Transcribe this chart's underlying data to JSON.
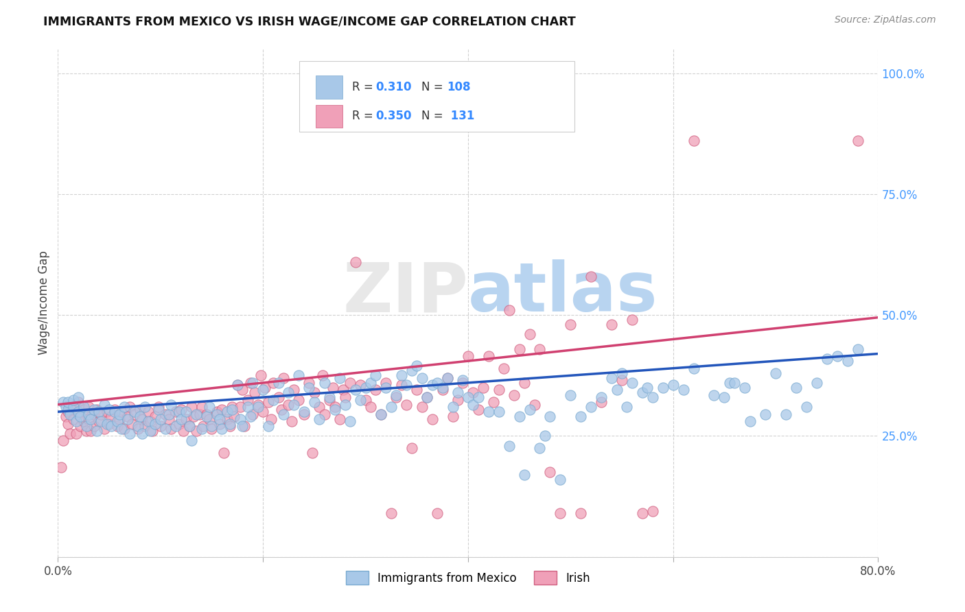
{
  "title": "IMMIGRANTS FROM MEXICO VS IRISH WAGE/INCOME GAP CORRELATION CHART",
  "source": "Source: ZipAtlas.com",
  "ylabel": "Wage/Income Gap",
  "xmin": 0.0,
  "xmax": 0.8,
  "ymin": 0.0,
  "ymax": 1.05,
  "watermark": "ZIPatlas",
  "series": [
    {
      "name": "Immigrants from Mexico",
      "color": "#a8c8e8",
      "edge_color": "#7aaad0",
      "trend_color": "#2255bb",
      "trend_start_x": 0.0,
      "trend_start_y": 0.3,
      "trend_end_x": 0.8,
      "trend_end_y": 0.42
    },
    {
      "name": "Irish",
      "color": "#f0a0b8",
      "edge_color": "#d06080",
      "trend_color": "#d04070",
      "trend_start_x": 0.0,
      "trend_start_y": 0.315,
      "trend_end_x": 0.8,
      "trend_end_y": 0.495
    }
  ],
  "legend_r1": "0.310",
  "legend_n1": "108",
  "legend_r2": "0.350",
  "legend_n2": "131",
  "mexico_points": [
    [
      0.005,
      0.32
    ],
    [
      0.008,
      0.31
    ],
    [
      0.01,
      0.305
    ],
    [
      0.01,
      0.32
    ],
    [
      0.012,
      0.295
    ],
    [
      0.015,
      0.31
    ],
    [
      0.015,
      0.325
    ],
    [
      0.018,
      0.28
    ],
    [
      0.02,
      0.3
    ],
    [
      0.02,
      0.33
    ],
    [
      0.022,
      0.29
    ],
    [
      0.025,
      0.31
    ],
    [
      0.028,
      0.27
    ],
    [
      0.03,
      0.295
    ],
    [
      0.032,
      0.285
    ],
    [
      0.035,
      0.305
    ],
    [
      0.038,
      0.26
    ],
    [
      0.04,
      0.3
    ],
    [
      0.042,
      0.28
    ],
    [
      0.045,
      0.315
    ],
    [
      0.048,
      0.275
    ],
    [
      0.05,
      0.305
    ],
    [
      0.052,
      0.27
    ],
    [
      0.055,
      0.3
    ],
    [
      0.058,
      0.28
    ],
    [
      0.06,
      0.295
    ],
    [
      0.062,
      0.265
    ],
    [
      0.065,
      0.31
    ],
    [
      0.068,
      0.285
    ],
    [
      0.07,
      0.255
    ],
    [
      0.075,
      0.3
    ],
    [
      0.078,
      0.27
    ],
    [
      0.08,
      0.29
    ],
    [
      0.082,
      0.255
    ],
    [
      0.085,
      0.31
    ],
    [
      0.088,
      0.28
    ],
    [
      0.09,
      0.26
    ],
    [
      0.095,
      0.275
    ],
    [
      0.098,
      0.305
    ],
    [
      0.1,
      0.285
    ],
    [
      0.105,
      0.265
    ],
    [
      0.108,
      0.295
    ],
    [
      0.11,
      0.315
    ],
    [
      0.115,
      0.27
    ],
    [
      0.118,
      0.3
    ],
    [
      0.12,
      0.285
    ],
    [
      0.125,
      0.3
    ],
    [
      0.128,
      0.27
    ],
    [
      0.13,
      0.24
    ],
    [
      0.135,
      0.295
    ],
    [
      0.14,
      0.265
    ],
    [
      0.145,
      0.29
    ],
    [
      0.148,
      0.31
    ],
    [
      0.15,
      0.27
    ],
    [
      0.155,
      0.295
    ],
    [
      0.158,
      0.285
    ],
    [
      0.16,
      0.265
    ],
    [
      0.165,
      0.3
    ],
    [
      0.168,
      0.275
    ],
    [
      0.17,
      0.305
    ],
    [
      0.175,
      0.355
    ],
    [
      0.178,
      0.285
    ],
    [
      0.18,
      0.27
    ],
    [
      0.185,
      0.31
    ],
    [
      0.188,
      0.29
    ],
    [
      0.19,
      0.36
    ],
    [
      0.195,
      0.31
    ],
    [
      0.2,
      0.345
    ],
    [
      0.205,
      0.27
    ],
    [
      0.21,
      0.325
    ],
    [
      0.215,
      0.36
    ],
    [
      0.22,
      0.295
    ],
    [
      0.225,
      0.34
    ],
    [
      0.23,
      0.315
    ],
    [
      0.235,
      0.375
    ],
    [
      0.24,
      0.3
    ],
    [
      0.245,
      0.35
    ],
    [
      0.25,
      0.32
    ],
    [
      0.255,
      0.285
    ],
    [
      0.26,
      0.36
    ],
    [
      0.265,
      0.33
    ],
    [
      0.27,
      0.305
    ],
    [
      0.275,
      0.37
    ],
    [
      0.28,
      0.315
    ],
    [
      0.285,
      0.28
    ],
    [
      0.29,
      0.345
    ],
    [
      0.295,
      0.325
    ],
    [
      0.3,
      0.35
    ],
    [
      0.305,
      0.36
    ],
    [
      0.31,
      0.375
    ],
    [
      0.315,
      0.295
    ],
    [
      0.32,
      0.35
    ],
    [
      0.325,
      0.31
    ],
    [
      0.33,
      0.335
    ],
    [
      0.335,
      0.375
    ],
    [
      0.34,
      0.355
    ],
    [
      0.345,
      0.385
    ],
    [
      0.35,
      0.395
    ],
    [
      0.355,
      0.37
    ],
    [
      0.36,
      0.33
    ],
    [
      0.365,
      0.355
    ],
    [
      0.37,
      0.36
    ],
    [
      0.375,
      0.35
    ],
    [
      0.38,
      0.37
    ],
    [
      0.385,
      0.31
    ],
    [
      0.39,
      0.34
    ],
    [
      0.395,
      0.365
    ],
    [
      0.4,
      0.33
    ],
    [
      0.405,
      0.315
    ],
    [
      0.41,
      0.33
    ],
    [
      0.42,
      0.3
    ],
    [
      0.43,
      0.3
    ],
    [
      0.44,
      0.23
    ],
    [
      0.45,
      0.29
    ],
    [
      0.455,
      0.17
    ],
    [
      0.46,
      0.305
    ],
    [
      0.47,
      0.225
    ],
    [
      0.475,
      0.25
    ],
    [
      0.48,
      0.29
    ],
    [
      0.49,
      0.16
    ],
    [
      0.5,
      0.335
    ],
    [
      0.51,
      0.29
    ],
    [
      0.52,
      0.31
    ],
    [
      0.53,
      0.33
    ],
    [
      0.54,
      0.37
    ],
    [
      0.545,
      0.345
    ],
    [
      0.55,
      0.38
    ],
    [
      0.555,
      0.31
    ],
    [
      0.56,
      0.36
    ],
    [
      0.57,
      0.34
    ],
    [
      0.575,
      0.35
    ],
    [
      0.58,
      0.33
    ],
    [
      0.59,
      0.35
    ],
    [
      0.6,
      0.355
    ],
    [
      0.61,
      0.345
    ],
    [
      0.62,
      0.39
    ],
    [
      0.64,
      0.335
    ],
    [
      0.65,
      0.33
    ],
    [
      0.655,
      0.36
    ],
    [
      0.66,
      0.36
    ],
    [
      0.67,
      0.35
    ],
    [
      0.675,
      0.28
    ],
    [
      0.69,
      0.295
    ],
    [
      0.7,
      0.38
    ],
    [
      0.71,
      0.295
    ],
    [
      0.72,
      0.35
    ],
    [
      0.73,
      0.31
    ],
    [
      0.74,
      0.36
    ],
    [
      0.75,
      0.41
    ],
    [
      0.76,
      0.415
    ],
    [
      0.77,
      0.405
    ],
    [
      0.78,
      0.43
    ]
  ],
  "irish_points": [
    [
      0.003,
      0.185
    ],
    [
      0.005,
      0.24
    ],
    [
      0.008,
      0.29
    ],
    [
      0.01,
      0.275
    ],
    [
      0.01,
      0.3
    ],
    [
      0.012,
      0.255
    ],
    [
      0.015,
      0.31
    ],
    [
      0.015,
      0.285
    ],
    [
      0.018,
      0.255
    ],
    [
      0.02,
      0.295
    ],
    [
      0.02,
      0.32
    ],
    [
      0.022,
      0.27
    ],
    [
      0.025,
      0.305
    ],
    [
      0.025,
      0.28
    ],
    [
      0.028,
      0.26
    ],
    [
      0.03,
      0.31
    ],
    [
      0.03,
      0.285
    ],
    [
      0.032,
      0.26
    ],
    [
      0.035,
      0.295
    ],
    [
      0.035,
      0.27
    ],
    [
      0.038,
      0.305
    ],
    [
      0.04,
      0.28
    ],
    [
      0.042,
      0.295
    ],
    [
      0.045,
      0.265
    ],
    [
      0.048,
      0.3
    ],
    [
      0.05,
      0.275
    ],
    [
      0.052,
      0.29
    ],
    [
      0.055,
      0.305
    ],
    [
      0.058,
      0.27
    ],
    [
      0.06,
      0.285
    ],
    [
      0.062,
      0.3
    ],
    [
      0.065,
      0.265
    ],
    [
      0.068,
      0.29
    ],
    [
      0.07,
      0.31
    ],
    [
      0.072,
      0.275
    ],
    [
      0.075,
      0.295
    ],
    [
      0.078,
      0.265
    ],
    [
      0.08,
      0.305
    ],
    [
      0.082,
      0.285
    ],
    [
      0.085,
      0.27
    ],
    [
      0.088,
      0.3
    ],
    [
      0.09,
      0.28
    ],
    [
      0.092,
      0.26
    ],
    [
      0.095,
      0.29
    ],
    [
      0.098,
      0.31
    ],
    [
      0.1,
      0.27
    ],
    [
      0.105,
      0.295
    ],
    [
      0.108,
      0.285
    ],
    [
      0.11,
      0.265
    ],
    [
      0.115,
      0.3
    ],
    [
      0.118,
      0.275
    ],
    [
      0.12,
      0.305
    ],
    [
      0.122,
      0.26
    ],
    [
      0.125,
      0.285
    ],
    [
      0.128,
      0.27
    ],
    [
      0.13,
      0.31
    ],
    [
      0.132,
      0.29
    ],
    [
      0.135,
      0.26
    ],
    [
      0.138,
      0.295
    ],
    [
      0.14,
      0.31
    ],
    [
      0.142,
      0.27
    ],
    [
      0.145,
      0.295
    ],
    [
      0.148,
      0.285
    ],
    [
      0.15,
      0.265
    ],
    [
      0.155,
      0.3
    ],
    [
      0.158,
      0.275
    ],
    [
      0.16,
      0.305
    ],
    [
      0.162,
      0.215
    ],
    [
      0.165,
      0.285
    ],
    [
      0.168,
      0.27
    ],
    [
      0.17,
      0.31
    ],
    [
      0.172,
      0.29
    ],
    [
      0.175,
      0.355
    ],
    [
      0.178,
      0.31
    ],
    [
      0.18,
      0.345
    ],
    [
      0.182,
      0.27
    ],
    [
      0.185,
      0.325
    ],
    [
      0.188,
      0.36
    ],
    [
      0.19,
      0.295
    ],
    [
      0.192,
      0.34
    ],
    [
      0.195,
      0.315
    ],
    [
      0.198,
      0.375
    ],
    [
      0.2,
      0.3
    ],
    [
      0.202,
      0.35
    ],
    [
      0.205,
      0.32
    ],
    [
      0.208,
      0.285
    ],
    [
      0.21,
      0.36
    ],
    [
      0.215,
      0.33
    ],
    [
      0.218,
      0.305
    ],
    [
      0.22,
      0.37
    ],
    [
      0.225,
      0.315
    ],
    [
      0.228,
      0.28
    ],
    [
      0.23,
      0.345
    ],
    [
      0.235,
      0.325
    ],
    [
      0.24,
      0.295
    ],
    [
      0.245,
      0.36
    ],
    [
      0.248,
      0.215
    ],
    [
      0.25,
      0.34
    ],
    [
      0.255,
      0.31
    ],
    [
      0.258,
      0.375
    ],
    [
      0.26,
      0.295
    ],
    [
      0.265,
      0.325
    ],
    [
      0.268,
      0.35
    ],
    [
      0.27,
      0.31
    ],
    [
      0.275,
      0.285
    ],
    [
      0.278,
      0.345
    ],
    [
      0.28,
      0.33
    ],
    [
      0.285,
      0.36
    ],
    [
      0.29,
      0.61
    ],
    [
      0.295,
      0.355
    ],
    [
      0.3,
      0.325
    ],
    [
      0.305,
      0.31
    ],
    [
      0.31,
      0.345
    ],
    [
      0.315,
      0.295
    ],
    [
      0.32,
      0.36
    ],
    [
      0.325,
      0.09
    ],
    [
      0.33,
      0.33
    ],
    [
      0.335,
      0.355
    ],
    [
      0.34,
      0.315
    ],
    [
      0.345,
      0.225
    ],
    [
      0.35,
      0.345
    ],
    [
      0.355,
      0.31
    ],
    [
      0.36,
      0.33
    ],
    [
      0.365,
      0.285
    ],
    [
      0.37,
      0.09
    ],
    [
      0.375,
      0.345
    ],
    [
      0.38,
      0.37
    ],
    [
      0.385,
      0.29
    ],
    [
      0.39,
      0.325
    ],
    [
      0.395,
      0.36
    ],
    [
      0.4,
      0.415
    ],
    [
      0.405,
      0.34
    ],
    [
      0.41,
      0.305
    ],
    [
      0.415,
      0.35
    ],
    [
      0.42,
      0.415
    ],
    [
      0.425,
      0.32
    ],
    [
      0.43,
      0.345
    ],
    [
      0.435,
      0.39
    ],
    [
      0.44,
      0.51
    ],
    [
      0.445,
      0.335
    ],
    [
      0.45,
      0.43
    ],
    [
      0.455,
      0.36
    ],
    [
      0.46,
      0.46
    ],
    [
      0.465,
      0.315
    ],
    [
      0.47,
      0.43
    ],
    [
      0.48,
      0.175
    ],
    [
      0.49,
      0.09
    ],
    [
      0.5,
      0.48
    ],
    [
      0.51,
      0.09
    ],
    [
      0.52,
      0.58
    ],
    [
      0.53,
      0.32
    ],
    [
      0.54,
      0.48
    ],
    [
      0.55,
      0.365
    ],
    [
      0.56,
      0.49
    ],
    [
      0.57,
      0.09
    ],
    [
      0.58,
      0.095
    ],
    [
      0.62,
      0.86
    ],
    [
      0.78,
      0.86
    ]
  ]
}
